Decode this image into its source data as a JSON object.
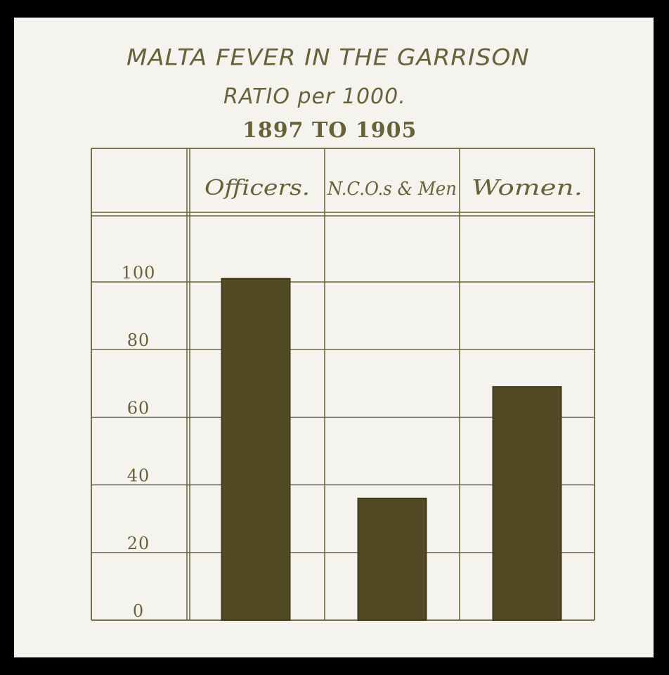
{
  "title_line1": "MALTA FEVER IN THE GARRISON",
  "title_line2": "RATIO per 1000.",
  "title_line3": "1897 TO 1905",
  "colors": {
    "ink": "#67623a",
    "bar": "#514a24",
    "paper": "#f4f3ee"
  },
  "chart_data": {
    "type": "bar",
    "categories": [
      "Officers.",
      "N.C.O.s & Men",
      "Women."
    ],
    "values": [
      101,
      36,
      69
    ],
    "yticks": [
      0,
      20,
      40,
      60,
      80,
      100
    ],
    "ylim": [
      0,
      120
    ],
    "grid": true
  }
}
